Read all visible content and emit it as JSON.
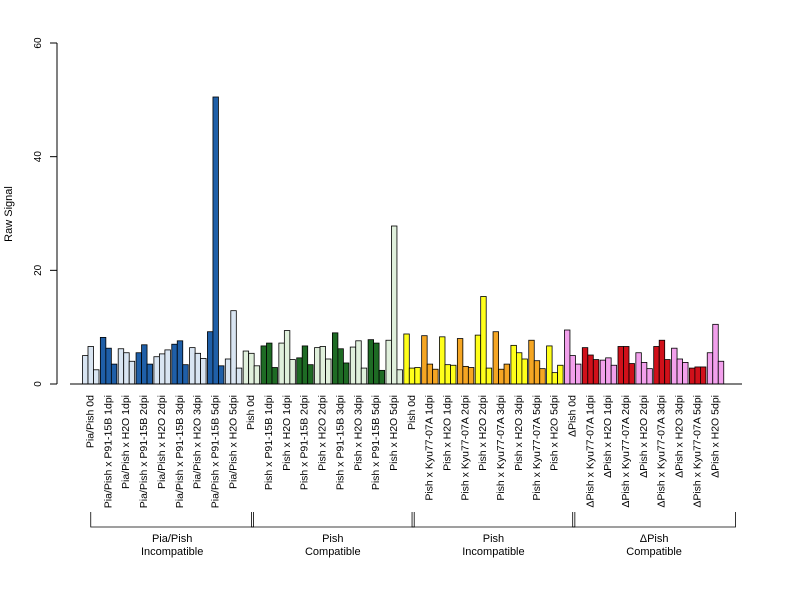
{
  "chart_data": {
    "type": "bar",
    "ylabel": "Raw Signal",
    "ylim": [
      0,
      60
    ],
    "yticks": [
      0,
      20,
      40,
      60
    ],
    "grid": false,
    "legend": "none",
    "categories": [
      "Pia/Pish 0d",
      "Pia/Pish x P91-15B 1dpi",
      "Pia/Pish x H2O 1dpi",
      "Pia/Pish x P91-15B 2dpi",
      "Pia/Pish x H2O 2dpi",
      "Pia/Pish x P91-15B 3dpi",
      "Pia/Pish x H2O 3dpi",
      "Pia/Pish x P91-15B 5dpi",
      "Pia/Pish x H2O 5dpi",
      "Pish 0d",
      "Pish x P91-15B 1dpi",
      "Pish x H2O 1dpi",
      "Pish x P91-15B 2dpi",
      "Pish x H2O 2dpi",
      "Pish x P91-15B 3dpi",
      "Pish x H2O 3dpi",
      "Pish x P91-15B 5dpi",
      "Pish x H2O 5dpi",
      "Pish 0d",
      "Pish x Kyu77-07A 1dpi",
      "Pish x H2O 1dpi",
      "Pish x Kyu77-07A 2dpi",
      "Pish x H2O 2dpi",
      "Pish x Kyu77-07A 3dpi",
      "Pish x H2O 3dpi",
      "Pish x Kyu77-07A 5dpi",
      "Pish x H2O 5dpi",
      "ΔPish 0d",
      "ΔPish x Kyu77-07A 1dpi",
      "ΔPish x H2O 1dpi",
      "ΔPish x Kyu77-07A 2dpi",
      "ΔPish x H2O 2dpi",
      "ΔPish x Kyu77-07A 3dpi",
      "ΔPish x H2O 3dpi",
      "ΔPish x Kyu77-07A 5dpi",
      "ΔPish x H2O 5dpi"
    ],
    "values": [
      [
        5.0,
        6.6,
        2.5
      ],
      [
        8.2,
        6.3,
        3.5
      ],
      [
        6.2,
        5.5,
        4.0
      ],
      [
        5.5,
        6.9,
        3.5
      ],
      [
        4.8,
        5.3,
        6.0
      ],
      [
        7.0,
        7.6,
        3.4
      ],
      [
        6.4,
        5.4,
        4.5
      ],
      [
        9.2,
        50.5,
        3.2
      ],
      [
        4.4,
        12.9,
        2.8
      ],
      [
        5.8,
        5.4,
        3.2
      ],
      [
        6.7,
        7.2,
        2.9
      ],
      [
        7.2,
        9.4,
        4.3
      ],
      [
        4.6,
        6.7,
        3.4
      ],
      [
        6.4,
        6.6,
        4.4
      ],
      [
        9.0,
        6.2,
        3.7
      ],
      [
        6.5,
        7.6,
        2.8
      ],
      [
        7.8,
        7.2,
        2.4
      ],
      [
        7.7,
        27.8,
        2.5
      ],
      [
        8.8,
        2.8,
        2.9
      ],
      [
        8.5,
        3.5,
        2.6
      ],
      [
        8.3,
        3.4,
        3.3
      ],
      [
        8.0,
        3.1,
        2.9
      ],
      [
        8.6,
        15.4,
        2.8
      ],
      [
        9.2,
        2.6,
        3.5
      ],
      [
        6.8,
        5.5,
        4.4
      ],
      [
        7.7,
        4.1,
        2.7
      ],
      [
        6.7,
        2.0,
        3.3
      ],
      [
        9.5,
        5.0,
        3.5
      ],
      [
        6.4,
        5.1,
        4.3
      ],
      [
        4.2,
        4.6,
        3.3
      ],
      [
        6.6,
        6.6,
        3.6
      ],
      [
        5.5,
        3.8,
        2.7
      ],
      [
        6.6,
        7.7,
        4.3
      ],
      [
        6.3,
        4.4,
        3.8
      ],
      [
        2.8,
        3.0,
        3.0
      ],
      [
        5.5,
        10.5,
        4.0
      ]
    ],
    "group_colors": [
      [
        "#d9e5f2",
        "#1f5fa8",
        "#d9e5f2",
        "#1f5fa8",
        "#d9e5f2",
        "#1f5fa8",
        "#d9e5f2",
        "#1f5fa8",
        "#d9e5f2"
      ],
      [
        "#e0f0dc",
        "#1e6b24",
        "#e0f0dc",
        "#1e6b24",
        "#e0f0dc",
        "#1e6b24",
        "#e0f0dc",
        "#1e6b24",
        "#e0f0dc"
      ],
      [
        "#ffff1a",
        "#f5a623",
        "#ffff1a",
        "#f5a623",
        "#ffff1a",
        "#f5a623",
        "#ffff1a",
        "#f5a623",
        "#ffff1a"
      ],
      [
        "#f2a0ec",
        "#d0101a",
        "#f2a0ec",
        "#d0101a",
        "#f2a0ec",
        "#d0101a",
        "#f2a0ec",
        "#d0101a",
        "#f2a0ec"
      ]
    ],
    "groups": [
      {
        "line1": "Pia/Pish",
        "line2": "Incompatible",
        "count": 9
      },
      {
        "line1": "Pish",
        "line2": "Compatible",
        "count": 9
      },
      {
        "line1": "Pish",
        "line2": "Incompatible",
        "count": 9
      },
      {
        "line1": "ΔPish",
        "line2": "Compatible",
        "count": 9
      }
    ]
  }
}
